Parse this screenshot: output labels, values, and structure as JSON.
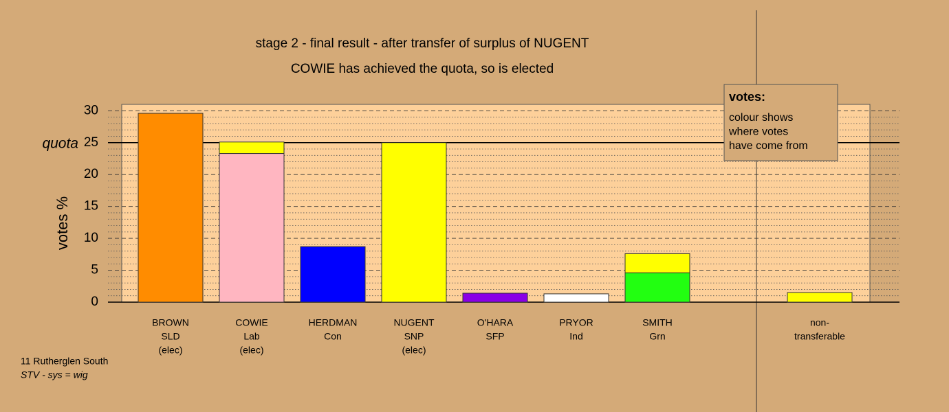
{
  "chart_data": {
    "type": "stacked-bar",
    "title": "stage 2 - final result - after transfer of surplus of NUGENT",
    "subtitle": "COWIE has achieved the quota, so is elected",
    "ylabel": "votes %",
    "categories": [
      [
        "BROWN",
        "SLD",
        "(elec)"
      ],
      [
        "COWIE",
        "Lab",
        "(elec)"
      ],
      [
        "HERDMAN",
        "Con"
      ],
      [
        "NUGENT",
        "SNP",
        "(elec)"
      ],
      [
        "O'HARA",
        "SFP"
      ],
      [
        "PRYOR",
        "Ind"
      ],
      [
        "SMITH",
        "Grn"
      ],
      null,
      [
        "non-",
        "transferable"
      ]
    ],
    "series": [
      {
        "colors": [
          "#ff8c00",
          "#ffb6c1",
          "#0000ff",
          "#ffff00",
          "#8a00e6",
          "#ffffff",
          "#22ff11",
          null,
          null
        ],
        "values": [
          29.6,
          23.3,
          8.7,
          25.0,
          1.4,
          1.3,
          4.6,
          null,
          null
        ]
      },
      {
        "color": "#ffff00",
        "values": [
          null,
          1.8,
          null,
          null,
          null,
          null,
          3.0,
          null,
          1.5
        ]
      }
    ],
    "ylim": [
      0,
      31
    ],
    "yticks": [
      0,
      5,
      10,
      15,
      20,
      25,
      30
    ],
    "minor_yticks": [
      1,
      2,
      3,
      4,
      6,
      7,
      8,
      9,
      11,
      12,
      13,
      14,
      16,
      17,
      18,
      19,
      21,
      22,
      23,
      24,
      26,
      27,
      28,
      29
    ],
    "quota": {
      "label": "quota",
      "value": 25
    },
    "annotation": {
      "title": "votes:",
      "lines": [
        "colour shows",
        "where votes",
        "have come from"
      ]
    },
    "footer": [
      "11 Rutherglen South",
      "STV - sys = wig"
    ]
  }
}
